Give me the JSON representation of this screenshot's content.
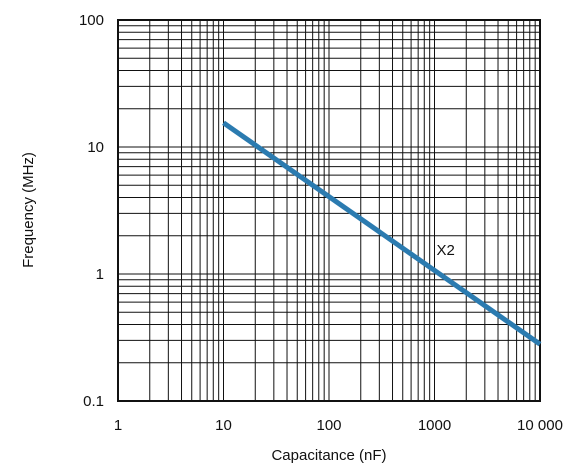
{
  "chart_data": {
    "type": "line",
    "title": "",
    "xlabel": "Capacitance (nF)",
    "ylabel": "Frequency (MHz)",
    "x_scale": "log",
    "y_scale": "log",
    "xlim": [
      1,
      10000
    ],
    "ylim": [
      0.1,
      100
    ],
    "x_ticks": [
      1,
      10,
      100,
      1000,
      10000
    ],
    "x_tick_labels": [
      "1",
      "10",
      "100",
      "1000",
      "10 000"
    ],
    "y_ticks": [
      0.1,
      1,
      10,
      100
    ],
    "y_tick_labels": [
      "0.1",
      "1",
      "10",
      "100"
    ],
    "grid": true,
    "legend": "none",
    "series": [
      {
        "name": "X2",
        "color": "#2B7BB0",
        "x": [
          10,
          10000
        ],
        "y": [
          15.5,
          0.28
        ]
      }
    ],
    "annotations": [
      {
        "text": "X2",
        "x": 1000,
        "y": 1.55
      }
    ]
  }
}
